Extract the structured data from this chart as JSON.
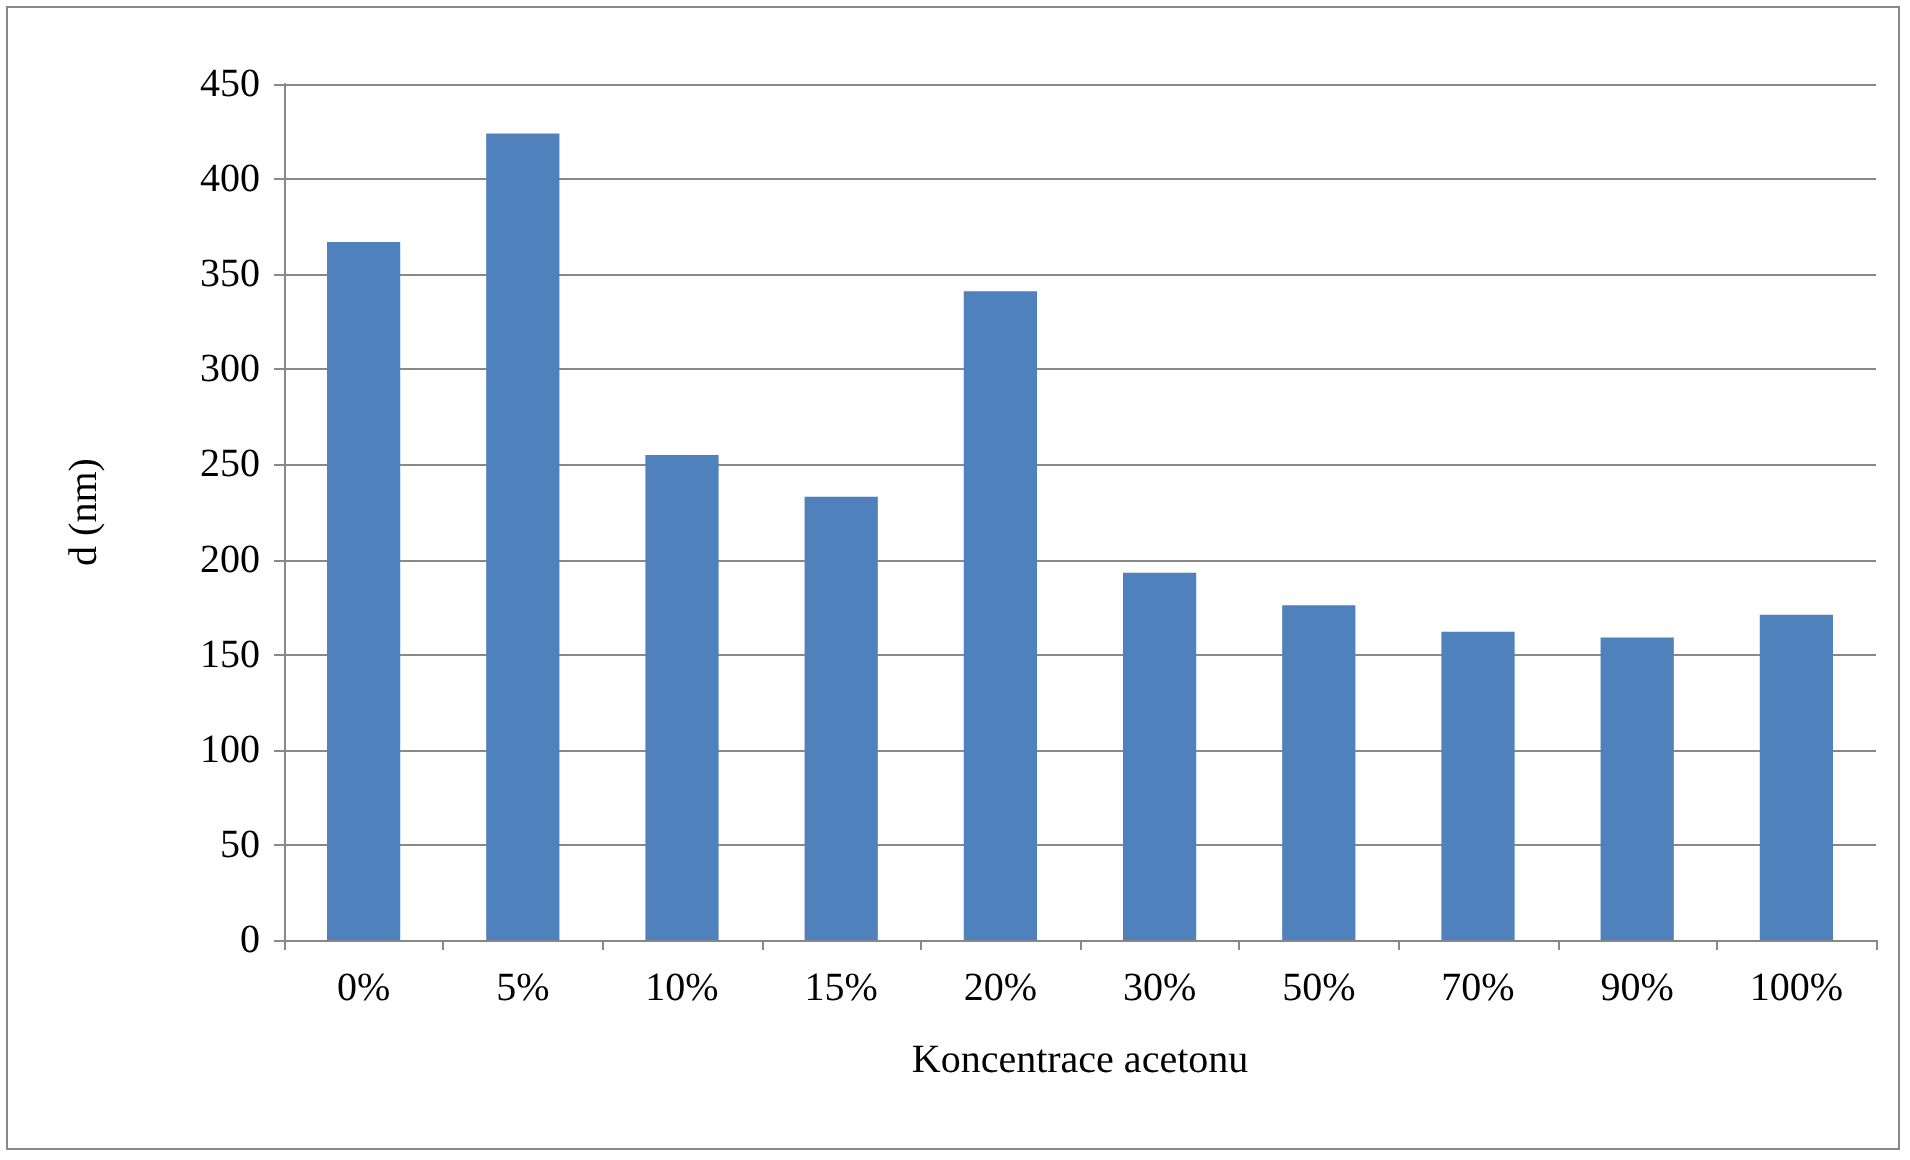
{
  "chart_data": {
    "type": "bar",
    "xlabel": "Koncentrace acetonu",
    "ylabel": "d (nm)",
    "categories": [
      "0%",
      "5%",
      "10%",
      "15%",
      "20%",
      "30%",
      "50%",
      "70%",
      "90%",
      "100%"
    ],
    "values": [
      367,
      424,
      255,
      233,
      341,
      193,
      176,
      162,
      159,
      171
    ],
    "color": "#4f81bd",
    "ylim": [
      0,
      450
    ],
    "yticks": [
      0,
      50,
      100,
      150,
      200,
      250,
      300,
      350,
      400,
      450
    ],
    "grid": "y"
  }
}
